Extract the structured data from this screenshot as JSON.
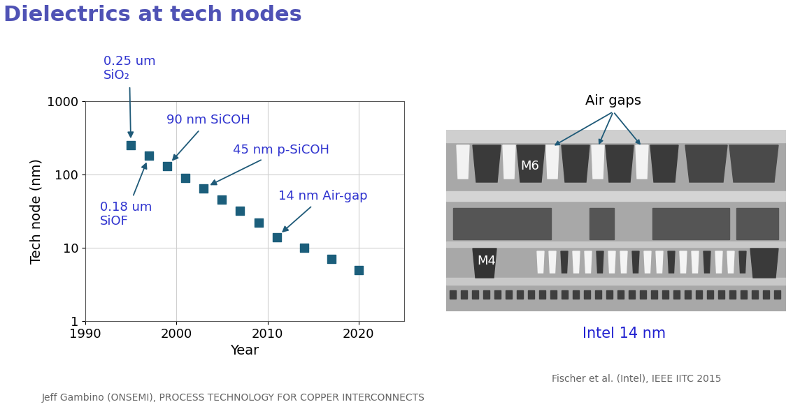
{
  "chart_data": {
    "type": "scatter",
    "title": "Dielectrics at tech nodes",
    "x": [
      1995,
      1997,
      1999,
      2001,
      2003,
      2005,
      2007,
      2009,
      2011,
      2014,
      2017,
      2020
    ],
    "values": [
      250,
      180,
      130,
      90,
      65,
      45,
      32,
      22,
      14,
      10,
      7,
      5
    ],
    "color": "#1b5e7b",
    "marker": "square",
    "xlabel": "Year",
    "ylabel": "Tech node (nm)",
    "xlim": [
      1990,
      2025
    ],
    "xticks": [
      1990,
      2000,
      2010,
      2020
    ],
    "ylim": [
      1,
      1000
    ],
    "yticks": [
      1,
      10,
      100,
      1000
    ],
    "log": "y",
    "grid": true,
    "annotations": [
      {
        "text": "0.25 um\nSiO₂",
        "x": 1995,
        "y": 250
      },
      {
        "text": "90 nm SiCOH",
        "x": 1999,
        "y": 130
      },
      {
        "text": "45 nm p-SiCOH",
        "x": 2003,
        "y": 65
      },
      {
        "text": "0.18 um\nSiOF",
        "x": 1997,
        "y": 180
      },
      {
        "text": "14 nm Air-gap",
        "x": 2011,
        "y": 14
      }
    ]
  },
  "micrograph": {
    "labels": [
      "Air gaps",
      "M6",
      "M4"
    ],
    "caption": "Intel 14 nm",
    "source": "Fischer et al. (Intel), IEEE IITC 2015"
  },
  "footer": "Jeff Gambino (ONSEMI), PROCESS TECHNOLOGY FOR COPPER INTERCONNECTS"
}
